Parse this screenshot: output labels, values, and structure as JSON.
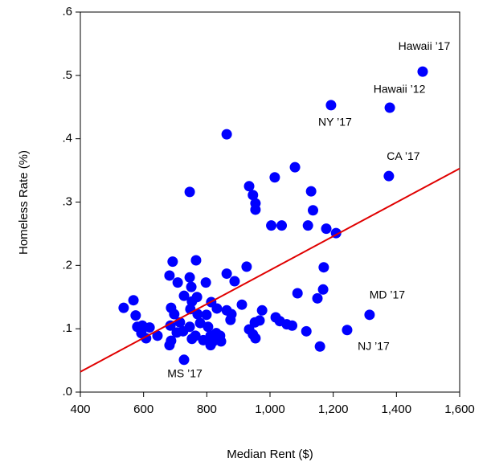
{
  "chart_data": {
    "type": "scatter",
    "x_label": "Median Rent ($)",
    "y_label": "Homeless Rate (%)",
    "xlim": [
      400,
      1600
    ],
    "ylim": [
      0,
      0.6
    ],
    "xticks": [
      400,
      600,
      800,
      {
        "value": 1000,
        "label": "1,000"
      },
      {
        "value": 1200,
        "label": "1,200"
      },
      {
        "value": 1400,
        "label": "1,400"
      },
      {
        "value": 1600,
        "label": "1,600"
      }
    ],
    "yticks": [
      {
        "value": 0,
        "label": ".0"
      },
      {
        "value": 0.1,
        "label": ".1"
      },
      {
        "value": 0.2,
        "label": ".2"
      },
      {
        "value": 0.3,
        "label": ".3"
      },
      {
        "value": 0.4,
        "label": ".4"
      },
      {
        "value": 0.5,
        "label": ".5"
      },
      {
        "value": 0.6,
        "label": ".6"
      }
    ],
    "series": [
      {
        "color": "#0000ff",
        "x": [
          1483,
          1379,
          1193,
          1376,
          1315,
          1244,
          728,
          863,
          746,
          1079,
          1015,
          934,
          946,
          954,
          954,
          1130,
          1136,
          1004,
          1037,
          1120,
          1178,
          1209,
          766,
          692,
          926,
          1170,
          863,
          682,
          746,
          888,
          708,
          797,
          751,
          1168,
          728,
          769,
          1087,
          1150,
          568,
          753,
          814,
          911,
          537,
          687,
          748,
          832,
          863,
          975,
          575,
          697,
          771,
          799,
          878,
          875,
          1018,
          1031,
          952,
          967,
          715,
          779,
          596,
          1053,
          1070,
          685,
          580,
          619,
          804,
          746,
          725,
          934,
          1115,
          705,
          830,
          812,
          764,
          593,
          946,
          644,
          842,
          608,
          753,
          954,
          687,
          789,
          845,
          812,
          682,
          1158,
          820
        ],
        "values": [
          0.506,
          0.449,
          0.453,
          0.341,
          0.122,
          0.098,
          0.051,
          0.407,
          0.316,
          0.355,
          0.339,
          0.325,
          0.311,
          0.298,
          0.288,
          0.317,
          0.287,
          0.263,
          0.263,
          0.263,
          0.258,
          0.251,
          0.208,
          0.206,
          0.198,
          0.197,
          0.187,
          0.184,
          0.181,
          0.175,
          0.173,
          0.173,
          0.166,
          0.162,
          0.152,
          0.15,
          0.156,
          0.148,
          0.145,
          0.143,
          0.142,
          0.138,
          0.133,
          0.133,
          0.131,
          0.132,
          0.129,
          0.129,
          0.121,
          0.123,
          0.123,
          0.122,
          0.123,
          0.114,
          0.118,
          0.112,
          0.11,
          0.113,
          0.11,
          0.109,
          0.105,
          0.107,
          0.105,
          0.105,
          0.103,
          0.102,
          0.103,
          0.103,
          0.096,
          0.099,
          0.096,
          0.094,
          0.093,
          0.089,
          0.089,
          0.093,
          0.091,
          0.089,
          0.089,
          0.085,
          0.084,
          0.085,
          0.081,
          0.082,
          0.08,
          0.074,
          0.074,
          0.072,
          0.08
        ]
      }
    ],
    "fit_line": {
      "color": "#e00000",
      "x": [
        400,
        1600
      ],
      "y": [
        0.032,
        0.353
      ]
    },
    "annotations": [
      {
        "text": "Hawaii ’17",
        "x": 1483,
        "y": 0.506
      },
      {
        "text": "Hawaii ’12",
        "x": 1379,
        "y": 0.449
      },
      {
        "text": "NY ’17",
        "x": 1193,
        "y": 0.453
      },
      {
        "text": "CA ’17",
        "x": 1376,
        "y": 0.341
      },
      {
        "text": "MD ’17",
        "x": 1315,
        "y": 0.122
      },
      {
        "text": "NJ ’17",
        "x": 1244,
        "y": 0.098
      },
      {
        "text": "MS ’17",
        "x": 728,
        "y": 0.051
      }
    ]
  }
}
